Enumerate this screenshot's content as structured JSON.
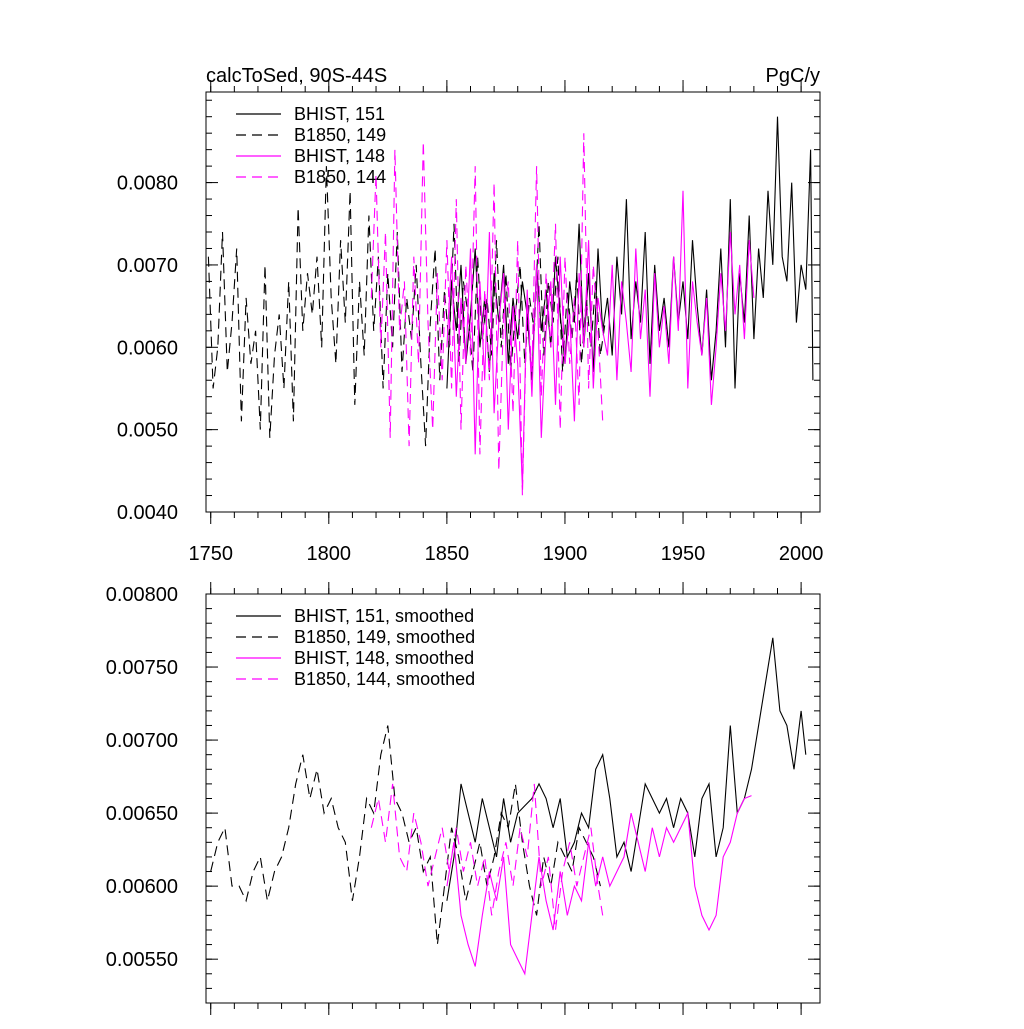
{
  "chart_data": [
    {
      "type": "line",
      "title_left": "calcToSed, 90S-44S",
      "title_right": "PgC/y",
      "xlim": [
        1748,
        2008
      ],
      "ylim": [
        0.004,
        0.0091
      ],
      "xticks": [
        "1750",
        "1800",
        "1850",
        "1900",
        "1950",
        "2000"
      ],
      "yticks": [
        "0.0040",
        "0.0050",
        "0.0060",
        "0.0070",
        "0.0080"
      ],
      "legend_position": "top-left",
      "series": [
        {
          "name": "BHIST, 151",
          "color": "#000000",
          "dash": "solid",
          "x": [
            1850,
            1852,
            1854,
            1856,
            1858,
            1860,
            1862,
            1864,
            1866,
            1868,
            1870,
            1872,
            1874,
            1876,
            1878,
            1880,
            1882,
            1884,
            1886,
            1888,
            1890,
            1892,
            1894,
            1896,
            1898,
            1900,
            1902,
            1904,
            1906,
            1908,
            1910,
            1912,
            1914,
            1916,
            1918,
            1920,
            1922,
            1924,
            1926,
            1928,
            1930,
            1932,
            1934,
            1936,
            1938,
            1940,
            1942,
            1944,
            1946,
            1948,
            1950,
            1952,
            1954,
            1956,
            1958,
            1960,
            1962,
            1964,
            1966,
            1968,
            1970,
            1972,
            1974,
            1976,
            1978,
            1980,
            1982,
            1984,
            1986,
            1988,
            1990,
            1992,
            1994,
            1996,
            1998,
            2000,
            2002,
            2004,
            2005
          ],
          "y": [
            0.0055,
            0.0068,
            0.0062,
            0.007,
            0.0058,
            0.0064,
            0.0072,
            0.006,
            0.0066,
            0.0057,
            0.0069,
            0.0063,
            0.007,
            0.0058,
            0.0066,
            0.0061,
            0.0068,
            0.0064,
            0.0056,
            0.007,
            0.0062,
            0.0067,
            0.006,
            0.0071,
            0.0064,
            0.0058,
            0.0068,
            0.0063,
            0.0075,
            0.006,
            0.0069,
            0.0057,
            0.0072,
            0.0062,
            0.0066,
            0.0059,
            0.0071,
            0.0064,
            0.0078,
            0.0061,
            0.0068,
            0.0063,
            0.0074,
            0.0058,
            0.007,
            0.0062,
            0.0066,
            0.006,
            0.0071,
            0.0063,
            0.0068,
            0.0061,
            0.0073,
            0.0065,
            0.0059,
            0.0067,
            0.0056,
            0.0062,
            0.0072,
            0.006,
            0.0078,
            0.0055,
            0.0069,
            0.0063,
            0.0076,
            0.0061,
            0.0072,
            0.0066,
            0.0079,
            0.007,
            0.0088,
            0.0071,
            0.0068,
            0.008,
            0.0063,
            0.007,
            0.0067,
            0.0084,
            0.0056
          ]
        },
        {
          "name": "B1850, 149",
          "color": "#000000",
          "dash": "dashed",
          "x": [
            1749,
            1751,
            1753,
            1755,
            1757,
            1759,
            1761,
            1763,
            1765,
            1767,
            1769,
            1771,
            1773,
            1775,
            1777,
            1779,
            1781,
            1783,
            1785,
            1787,
            1789,
            1791,
            1793,
            1795,
            1797,
            1799,
            1801,
            1803,
            1805,
            1807,
            1809,
            1811,
            1813,
            1815,
            1817,
            1819,
            1821,
            1823,
            1825,
            1827,
            1829,
            1831,
            1833,
            1835,
            1837,
            1839,
            1841,
            1843,
            1845,
            1847,
            1849,
            1851,
            1853,
            1855,
            1857,
            1859,
            1861,
            1863,
            1865,
            1867,
            1869,
            1871,
            1873,
            1875,
            1877,
            1879,
            1881,
            1883,
            1885,
            1887,
            1889,
            1891,
            1893,
            1895,
            1897,
            1899,
            1901,
            1903,
            1905,
            1907,
            1909,
            1911,
            1913,
            1915,
            1917
          ],
          "y": [
            0.0071,
            0.0055,
            0.006,
            0.0074,
            0.0057,
            0.0063,
            0.0072,
            0.0051,
            0.0066,
            0.0058,
            0.0062,
            0.005,
            0.007,
            0.0049,
            0.0059,
            0.0064,
            0.0055,
            0.0068,
            0.0051,
            0.0077,
            0.0062,
            0.0069,
            0.0064,
            0.0071,
            0.006,
            0.0082,
            0.0066,
            0.0058,
            0.0073,
            0.0063,
            0.0079,
            0.0053,
            0.0068,
            0.0059,
            0.0076,
            0.0062,
            0.0071,
            0.0055,
            0.0069,
            0.006,
            0.0074,
            0.0057,
            0.0066,
            0.0061,
            0.007,
            0.0058,
            0.0048,
            0.0063,
            0.0072,
            0.0056,
            0.0067,
            0.006,
            0.0075,
            0.0058,
            0.0068,
            0.0064,
            0.0057,
            0.0071,
            0.0061,
            0.0066,
            0.0059,
            0.0073,
            0.006,
            0.0069,
            0.0057,
            0.0064,
            0.007,
            0.0058,
            0.0066,
            0.0062,
            0.0075,
            0.0059,
            0.0068,
            0.0063,
            0.0071,
            0.0057,
            0.0067,
            0.0061,
            0.0069,
            0.0058,
            0.0066,
            0.006,
            0.0068,
            0.0059,
            0.0063
          ]
        },
        {
          "name": "BHIST, 148",
          "color": "#ff00ff",
          "dash": "solid",
          "x": [
            1850,
            1852,
            1854,
            1856,
            1858,
            1860,
            1862,
            1864,
            1866,
            1868,
            1870,
            1872,
            1874,
            1876,
            1878,
            1880,
            1882,
            1884,
            1886,
            1888,
            1890,
            1892,
            1894,
            1896,
            1898,
            1900,
            1902,
            1904,
            1906,
            1908,
            1910,
            1912,
            1914,
            1916,
            1918,
            1920,
            1922,
            1924,
            1926,
            1928,
            1930,
            1932,
            1934,
            1936,
            1938,
            1940,
            1942,
            1944,
            1946,
            1948,
            1950,
            1952,
            1954,
            1956,
            1958,
            1960,
            1962,
            1964,
            1966,
            1968,
            1970,
            1972,
            1974,
            1976,
            1978,
            1980
          ],
          "y": [
            0.006,
            0.0071,
            0.0054,
            0.0066,
            0.0058,
            0.0072,
            0.0047,
            0.0068,
            0.0056,
            0.0074,
            0.0052,
            0.0063,
            0.0069,
            0.005,
            0.0065,
            0.0058,
            0.0043,
            0.0067,
            0.0054,
            0.007,
            0.0049,
            0.0062,
            0.0068,
            0.0053,
            0.0071,
            0.0058,
            0.0064,
            0.0051,
            0.0069,
            0.006,
            0.0073,
            0.0055,
            0.0066,
            0.0062,
            0.0059,
            0.007,
            0.0056,
            0.0068,
            0.0063,
            0.0057,
            0.0072,
            0.0061,
            0.0067,
            0.0054,
            0.0069,
            0.006,
            0.0065,
            0.0058,
            0.0071,
            0.0062,
            0.0079,
            0.0055,
            0.0068,
            0.0063,
            0.0059,
            0.0066,
            0.0053,
            0.006,
            0.0069,
            0.0062,
            0.0074,
            0.0064,
            0.007,
            0.0061,
            0.0073,
            0.0066
          ]
        },
        {
          "name": "B1850, 144",
          "color": "#ff00ff",
          "dash": "dashed",
          "x": [
            1818,
            1820,
            1822,
            1824,
            1826,
            1828,
            1830,
            1832,
            1834,
            1836,
            1838,
            1840,
            1842,
            1844,
            1846,
            1848,
            1850,
            1852,
            1854,
            1856,
            1858,
            1860,
            1862,
            1864,
            1866,
            1868,
            1870,
            1872,
            1874,
            1876,
            1878,
            1880,
            1882,
            1884,
            1886,
            1888,
            1890,
            1892,
            1894,
            1896,
            1898,
            1900,
            1902,
            1904,
            1906,
            1908,
            1910,
            1912,
            1914,
            1916
          ],
          "y": [
            0.0066,
            0.0081,
            0.006,
            0.0074,
            0.0049,
            0.0084,
            0.0062,
            0.0068,
            0.0048,
            0.0071,
            0.0058,
            0.0085,
            0.0063,
            0.005,
            0.0069,
            0.0056,
            0.0073,
            0.0055,
            0.0078,
            0.005,
            0.007,
            0.0059,
            0.0082,
            0.0047,
            0.0067,
            0.0056,
            0.008,
            0.0045,
            0.0064,
            0.0068,
            0.0052,
            0.0073,
            0.0042,
            0.0066,
            0.0057,
            0.0082,
            0.0054,
            0.0069,
            0.006,
            0.0075,
            0.005,
            0.0071,
            0.0058,
            0.0066,
            0.0053,
            0.0086,
            0.0055,
            0.007,
            0.0062,
            0.0051
          ]
        }
      ]
    },
    {
      "type": "line",
      "xlim": [
        1748,
        2008
      ],
      "ylim": [
        0.0052,
        0.008
      ],
      "xticks": [],
      "yticks": [
        "0.00550",
        "0.00600",
        "0.00650",
        "0.00700",
        "0.00750",
        "0.00800"
      ],
      "legend_position": "top-left",
      "series": [
        {
          "name": "BHIST, 151, smoothed",
          "color": "#000000",
          "dash": "solid",
          "x": [
            1850,
            1853,
            1856,
            1859,
            1862,
            1865,
            1868,
            1871,
            1874,
            1877,
            1880,
            1883,
            1886,
            1889,
            1892,
            1895,
            1898,
            1901,
            1904,
            1907,
            1910,
            1913,
            1916,
            1919,
            1922,
            1925,
            1928,
            1931,
            1934,
            1937,
            1940,
            1943,
            1946,
            1949,
            1952,
            1955,
            1958,
            1961,
            1964,
            1967,
            1970,
            1973,
            1976,
            1979,
            1982,
            1985,
            1988,
            1991,
            1994,
            1997,
            2000,
            2002
          ],
          "y": [
            0.0059,
            0.0062,
            0.0067,
            0.0065,
            0.0063,
            0.0066,
            0.0064,
            0.0062,
            0.0066,
            0.0063,
            0.0065,
            0.00655,
            0.0066,
            0.0067,
            0.0066,
            0.0064,
            0.0066,
            0.0062,
            0.0063,
            0.0065,
            0.0064,
            0.0068,
            0.0069,
            0.0066,
            0.0062,
            0.0063,
            0.0061,
            0.0064,
            0.0067,
            0.0066,
            0.0065,
            0.0066,
            0.0064,
            0.0066,
            0.0065,
            0.0062,
            0.0066,
            0.0067,
            0.0062,
            0.0064,
            0.0071,
            0.0065,
            0.0066,
            0.0068,
            0.0071,
            0.0074,
            0.0077,
            0.0072,
            0.0071,
            0.0068,
            0.0072,
            0.0069
          ]
        },
        {
          "name": "B1850, 149, smoothed",
          "color": "#000000",
          "dash": "dashed",
          "x": [
            1750,
            1753,
            1756,
            1759,
            1762,
            1765,
            1768,
            1771,
            1774,
            1777,
            1780,
            1783,
            1786,
            1789,
            1792,
            1795,
            1798,
            1801,
            1804,
            1807,
            1810,
            1813,
            1816,
            1819,
            1822,
            1825,
            1828,
            1831,
            1834,
            1837,
            1840,
            1843,
            1846,
            1849,
            1852,
            1855,
            1858,
            1861,
            1864,
            1867,
            1870,
            1873,
            1876,
            1879,
            1882,
            1885,
            1888,
            1891,
            1894,
            1897,
            1900,
            1903,
            1906,
            1909,
            1912,
            1915
          ],
          "y": [
            0.0061,
            0.0063,
            0.0064,
            0.006,
            0.006,
            0.0059,
            0.0061,
            0.0062,
            0.0059,
            0.0061,
            0.0062,
            0.0064,
            0.0067,
            0.0069,
            0.0066,
            0.0068,
            0.0065,
            0.0066,
            0.0064,
            0.0063,
            0.0059,
            0.0062,
            0.0066,
            0.0065,
            0.0069,
            0.0071,
            0.0066,
            0.0065,
            0.0063,
            0.0064,
            0.0061,
            0.0062,
            0.0056,
            0.006,
            0.0064,
            0.0062,
            0.0059,
            0.0061,
            0.0063,
            0.006,
            0.0062,
            0.0065,
            0.0064,
            0.0067,
            0.0063,
            0.006,
            0.0058,
            0.0062,
            0.006,
            0.0063,
            0.0062,
            0.0061,
            0.0064,
            0.0063,
            0.0062,
            0.006
          ]
        },
        {
          "name": "BHIST, 148, smoothed",
          "color": "#ff00ff",
          "dash": "solid",
          "x": [
            1850,
            1853,
            1856,
            1859,
            1862,
            1865,
            1868,
            1871,
            1874,
            1877,
            1880,
            1883,
            1886,
            1889,
            1892,
            1895,
            1898,
            1901,
            1904,
            1907,
            1910,
            1913,
            1916,
            1919,
            1922,
            1925,
            1928,
            1931,
            1934,
            1937,
            1940,
            1943,
            1946,
            1949,
            1952,
            1955,
            1958,
            1961,
            1964,
            1967,
            1970,
            1973,
            1976,
            1979
          ],
          "y": [
            0.006,
            0.0063,
            0.0058,
            0.0056,
            0.00545,
            0.0058,
            0.0061,
            0.0059,
            0.0062,
            0.0056,
            0.0055,
            0.0054,
            0.0058,
            0.0062,
            0.0059,
            0.0057,
            0.0061,
            0.0058,
            0.006,
            0.0059,
            0.0063,
            0.006,
            0.0062,
            0.006,
            0.0061,
            0.0062,
            0.0065,
            0.0063,
            0.0061,
            0.0064,
            0.0062,
            0.0064,
            0.0063,
            0.0064,
            0.0065,
            0.006,
            0.0058,
            0.0057,
            0.0058,
            0.0062,
            0.0063,
            0.0065,
            0.0066,
            0.00662
          ]
        },
        {
          "name": "B1850, 144, smoothed",
          "color": "#ff00ff",
          "dash": "dashed",
          "x": [
            1818,
            1821,
            1824,
            1827,
            1830,
            1833,
            1836,
            1839,
            1842,
            1845,
            1848,
            1851,
            1854,
            1857,
            1860,
            1863,
            1866,
            1869,
            1872,
            1875,
            1878,
            1881,
            1884,
            1887,
            1890,
            1893,
            1896,
            1899,
            1902,
            1905,
            1908,
            1911,
            1914,
            1916
          ],
          "y": [
            0.0064,
            0.0066,
            0.0063,
            0.0067,
            0.0062,
            0.0061,
            0.0065,
            0.0063,
            0.006,
            0.0062,
            0.0064,
            0.0061,
            0.0064,
            0.0061,
            0.0063,
            0.006,
            0.0062,
            0.0058,
            0.0061,
            0.0063,
            0.006,
            0.0064,
            0.0062,
            0.0067,
            0.006,
            0.0062,
            0.0057,
            0.0061,
            0.0063,
            0.006,
            0.0062,
            0.0064,
            0.006,
            0.0058
          ]
        }
      ]
    }
  ]
}
